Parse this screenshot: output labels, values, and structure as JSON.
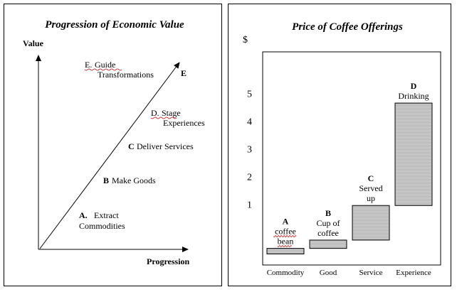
{
  "left_diagram": {
    "title": "Progression of Economic Value",
    "y_axis_label": "Value",
    "x_axis_label": "Progression",
    "end_label": "E",
    "stages": [
      {
        "letter": "A.",
        "text1": "Extract",
        "text2": "Commodities"
      },
      {
        "letter": "B",
        "text1": "Make Goods"
      },
      {
        "letter": "C",
        "text1": "Deliver Services"
      },
      {
        "letter": "D.",
        "text1": "Stage",
        "text2": "Experiences"
      },
      {
        "letter": "E.",
        "text1": "Guide",
        "text2": "Transformations"
      }
    ]
  },
  "chart_data": {
    "type": "bar",
    "title": "Price of Coffee Offerings",
    "ylabel": "$",
    "categories": [
      "Commodity",
      "Good",
      "Service",
      "Experience"
    ],
    "y_ticks": [
      "1",
      "2",
      "3",
      "4",
      "5"
    ],
    "ylim": [
      -1.2,
      6.5
    ],
    "bars": [
      {
        "low": -0.8,
        "high": -0.6,
        "labels": [
          "A",
          "coffee",
          "bean"
        ]
      },
      {
        "low": -0.6,
        "high": -0.3,
        "labels": [
          "B",
          "Cup of",
          "coffee"
        ]
      },
      {
        "low": -0.3,
        "high": 0.95,
        "labels": [
          "C",
          "Served",
          "up"
        ]
      },
      {
        "low": 0.95,
        "high": 4.65,
        "labels": [
          "D",
          "Drinking"
        ]
      }
    ],
    "bar_color": "#c8c8c8"
  }
}
